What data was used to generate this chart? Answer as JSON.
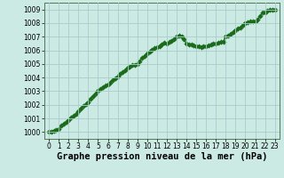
{
  "x_values": [
    0.0,
    0.25,
    0.5,
    0.75,
    1.0,
    1.25,
    1.5,
    1.75,
    2.0,
    2.25,
    2.5,
    2.75,
    3.0,
    3.25,
    3.5,
    3.75,
    4.0,
    4.25,
    4.5,
    4.75,
    5.0,
    5.25,
    5.5,
    5.75,
    6.0,
    6.25,
    6.5,
    6.75,
    7.0,
    7.25,
    7.5,
    7.75,
    8.0,
    8.25,
    8.5,
    8.75,
    9.0,
    9.25,
    9.5,
    9.75,
    10.0,
    10.25,
    10.5,
    10.75,
    11.0,
    11.25,
    11.5,
    11.75,
    12.0,
    12.25,
    12.5,
    12.75,
    13.0,
    13.25,
    13.5,
    13.75,
    14.0,
    14.25,
    14.5,
    14.75,
    15.0,
    15.25,
    15.5,
    15.75,
    16.0,
    16.25,
    16.5,
    16.75,
    17.0,
    17.25,
    17.5,
    17.75,
    18.0,
    18.25,
    18.5,
    18.75,
    19.0,
    19.25,
    19.5,
    19.75,
    20.0,
    20.25,
    20.5,
    20.75,
    21.0,
    21.25,
    21.5,
    21.75,
    22.0,
    22.25,
    22.5,
    22.75,
    23.0
  ],
  "y_values": [
    1000.0,
    1000.05,
    1000.1,
    1000.15,
    1000.2,
    1000.45,
    1000.6,
    1000.75,
    1000.9,
    1001.05,
    1001.2,
    1001.35,
    1001.5,
    1001.7,
    1001.9,
    1002.05,
    1002.2,
    1002.45,
    1002.65,
    1002.82,
    1003.0,
    1003.15,
    1003.3,
    1003.4,
    1003.5,
    1003.65,
    1003.8,
    1003.95,
    1004.1,
    1004.25,
    1004.4,
    1004.55,
    1004.7,
    1004.82,
    1004.9,
    1004.95,
    1005.0,
    1005.2,
    1005.45,
    1005.6,
    1005.8,
    1005.92,
    1006.05,
    1006.15,
    1006.2,
    1006.3,
    1006.45,
    1006.55,
    1006.5,
    1006.6,
    1006.72,
    1006.85,
    1007.0,
    1007.05,
    1007.0,
    1006.85,
    1006.5,
    1006.45,
    1006.4,
    1006.38,
    1006.3,
    1006.28,
    1006.25,
    1006.3,
    1006.3,
    1006.35,
    1006.4,
    1006.5,
    1006.5,
    1006.55,
    1006.6,
    1006.65,
    1007.0,
    1007.1,
    1007.2,
    1007.35,
    1007.5,
    1007.6,
    1007.7,
    1007.85,
    1008.0,
    1008.05,
    1008.1,
    1008.12,
    1008.1,
    1008.25,
    1008.5,
    1008.75,
    1008.8,
    1008.88,
    1008.95,
    1009.0,
    1009.0
  ],
  "line_color": "#1a6b1a",
  "marker_color": "#1a6b1a",
  "bg_color": "#cceae4",
  "plot_bg_color": "#cceae4",
  "grid_color": "#aacccc",
  "xlabel": "Graphe pression niveau de la mer (hPa)",
  "ylim": [
    999.5,
    1009.5
  ],
  "xlim": [
    -0.5,
    23.5
  ],
  "yticks": [
    1000,
    1001,
    1002,
    1003,
    1004,
    1005,
    1006,
    1007,
    1008,
    1009
  ],
  "xticks": [
    0,
    1,
    2,
    3,
    4,
    5,
    6,
    7,
    8,
    9,
    10,
    11,
    12,
    13,
    14,
    15,
    16,
    17,
    18,
    19,
    20,
    21,
    22,
    23
  ],
  "tick_fontsize": 5.5,
  "xlabel_fontsize": 7.5,
  "line_width": 1.0,
  "marker_size": 2.8
}
